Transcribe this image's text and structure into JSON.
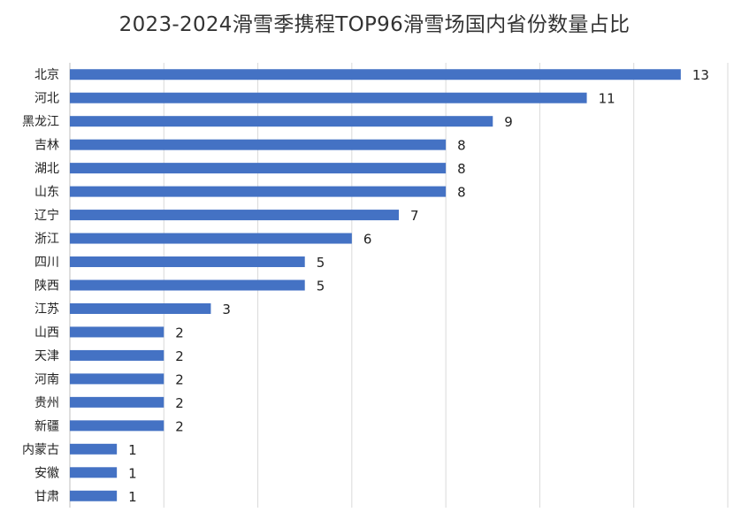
{
  "chart_data": {
    "type": "bar",
    "orientation": "horizontal",
    "title": "2023-2024滑雪季携程TOP96滑雪场国内省份数量占比",
    "categories": [
      "北京",
      "河北",
      "黑龙江",
      "吉林",
      "湖北",
      "山东",
      "辽宁",
      "浙江",
      "四川",
      "陕西",
      "江苏",
      "山西",
      "天津",
      "河南",
      "贵州",
      "新疆",
      "内蒙古",
      "安徽",
      "甘肃"
    ],
    "values": [
      13,
      11,
      9,
      8,
      8,
      8,
      7,
      6,
      5,
      5,
      3,
      2,
      2,
      2,
      2,
      2,
      1,
      1,
      1
    ],
    "xlim": [
      0,
      14
    ],
    "grid": true,
    "data_labels": true,
    "legend": "none",
    "colors": {
      "bar": "#4472C4"
    }
  }
}
